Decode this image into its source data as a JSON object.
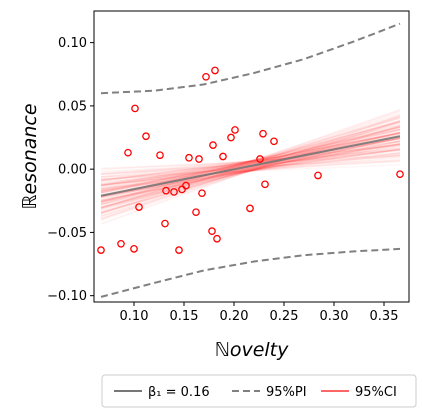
{
  "chart_data": {
    "type": "scatter",
    "xlabel": "ℕovelty",
    "ylabel": "ℝesonance",
    "xlim": [
      0.06,
      0.375
    ],
    "ylim": [
      -0.105,
      0.125
    ],
    "xticks": [
      0.1,
      0.15,
      0.2,
      0.25,
      0.3,
      0.35
    ],
    "yticks": [
      -0.1,
      -0.05,
      0.0,
      0.05,
      0.1
    ],
    "xtick_labels": [
      "0.10",
      "0.15",
      "0.20",
      "0.25",
      "0.30",
      "0.35"
    ],
    "ytick_labels": [
      "−0.10",
      "−0.05",
      "0.00",
      "0.05",
      "0.10"
    ],
    "grid": false,
    "legend_position": "bottom",
    "colors": {
      "points": "#ff0000",
      "fit": "#777777",
      "pi": "#808080",
      "ci": "#ff6666"
    },
    "points": [
      [
        0.067,
        -0.064
      ],
      [
        0.087,
        -0.059
      ],
      [
        0.094,
        0.013
      ],
      [
        0.1,
        -0.063
      ],
      [
        0.101,
        0.048
      ],
      [
        0.105,
        -0.03
      ],
      [
        0.112,
        0.026
      ],
      [
        0.126,
        0.011
      ],
      [
        0.131,
        -0.043
      ],
      [
        0.132,
        -0.017
      ],
      [
        0.14,
        -0.018
      ],
      [
        0.145,
        -0.064
      ],
      [
        0.148,
        -0.016
      ],
      [
        0.152,
        -0.013
      ],
      [
        0.155,
        0.009
      ],
      [
        0.162,
        -0.034
      ],
      [
        0.165,
        0.008
      ],
      [
        0.168,
        -0.019
      ],
      [
        0.172,
        0.073
      ],
      [
        0.178,
        -0.049
      ],
      [
        0.179,
        0.019
      ],
      [
        0.181,
        0.078
      ],
      [
        0.183,
        -0.055
      ],
      [
        0.189,
        0.01
      ],
      [
        0.197,
        0.025
      ],
      [
        0.201,
        0.031
      ],
      [
        0.216,
        -0.031
      ],
      [
        0.226,
        0.008
      ],
      [
        0.229,
        0.028
      ],
      [
        0.231,
        -0.012
      ],
      [
        0.24,
        0.022
      ],
      [
        0.284,
        -0.005
      ],
      [
        0.366,
        -0.004
      ]
    ],
    "fit": {
      "slope": 0.16,
      "x": [
        0.067,
        0.366
      ],
      "y": [
        -0.021,
        0.026
      ]
    },
    "pi_upper": {
      "x": [
        0.067,
        0.12,
        0.17,
        0.22,
        0.27,
        0.32,
        0.366
      ],
      "y": [
        0.06,
        0.062,
        0.067,
        0.076,
        0.087,
        0.101,
        0.115
      ]
    },
    "pi_lower": {
      "x": [
        0.067,
        0.12,
        0.17,
        0.22,
        0.27,
        0.32,
        0.366
      ],
      "y": [
        -0.101,
        -0.09,
        -0.08,
        -0.073,
        -0.068,
        -0.065,
        -0.063
      ]
    },
    "legend": [
      {
        "kind": "solid",
        "label": "β₁ = 0.16"
      },
      {
        "kind": "dashed",
        "label": "95%PI"
      },
      {
        "kind": "red",
        "label": "95%CI"
      }
    ]
  }
}
